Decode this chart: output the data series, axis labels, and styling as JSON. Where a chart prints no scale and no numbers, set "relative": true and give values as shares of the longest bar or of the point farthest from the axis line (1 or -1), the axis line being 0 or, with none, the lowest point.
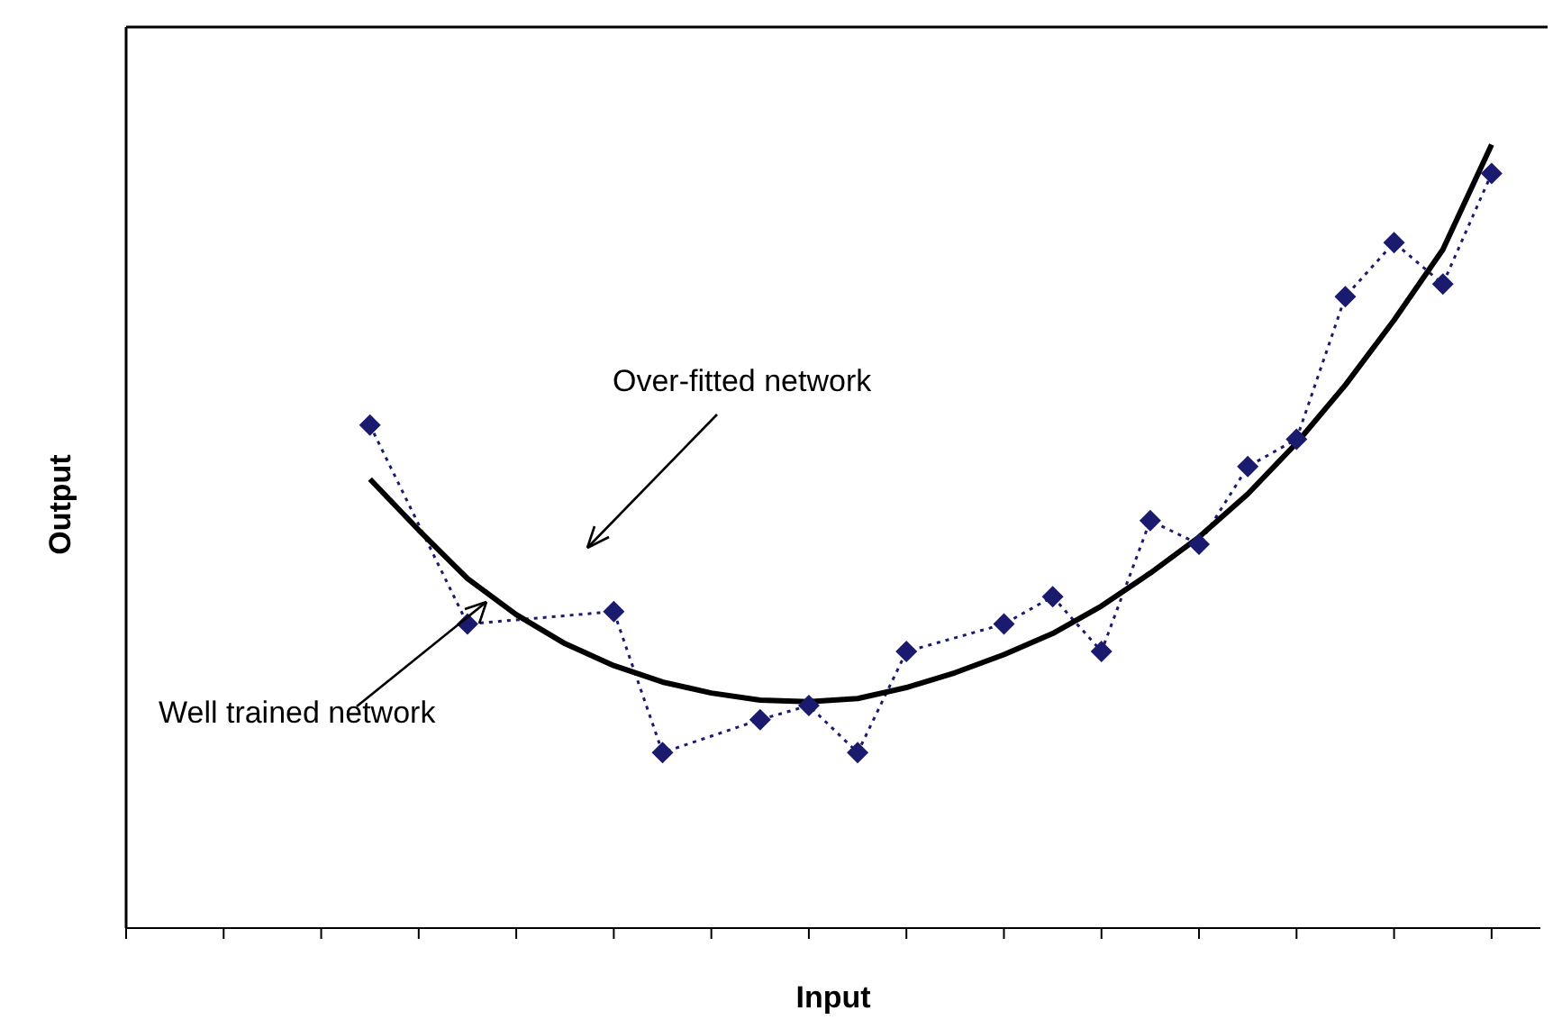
{
  "chart_data": {
    "type": "line",
    "relative": true,
    "xlabel": "Input",
    "ylabel": "Output",
    "categories": [
      null,
      null,
      null,
      null,
      null,
      null,
      null,
      null,
      null,
      null,
      null,
      null,
      null,
      null,
      null,
      null,
      null,
      null,
      null,
      null,
      null,
      null,
      null,
      null,
      null,
      null,
      null,
      null,
      null,
      null
    ],
    "legend": false,
    "grid": false,
    "annotations": [
      "Over-fitted network",
      "Well trained network"
    ],
    "series": [
      {
        "color": "#1a1a6e",
        "marker": "diamond",
        "line_style": "dotted",
        "values": [
          null,
          null,
          null,
          null,
          null,
          0.642,
          null,
          0.388,
          null,
          null,
          0.404,
          0.224,
          null,
          0.266,
          0.284,
          0.224,
          0.353,
          null,
          0.388,
          0.423,
          0.353,
          0.52,
          0.49,
          0.589,
          0.624,
          0.806,
          0.875,
          0.822,
          0.963,
          null
        ]
      },
      {
        "color": "#000000",
        "marker": "none",
        "line_style": "solid",
        "values": [
          null,
          null,
          null,
          null,
          null,
          0.573,
          0.508,
          0.446,
          0.4,
          0.363,
          0.335,
          0.314,
          0.3,
          0.291,
          0.289,
          0.293,
          0.307,
          0.326,
          0.349,
          0.376,
          0.411,
          0.453,
          0.499,
          0.554,
          0.619,
          0.693,
          0.776,
          0.866,
          1,
          null
        ]
      }
    ]
  }
}
